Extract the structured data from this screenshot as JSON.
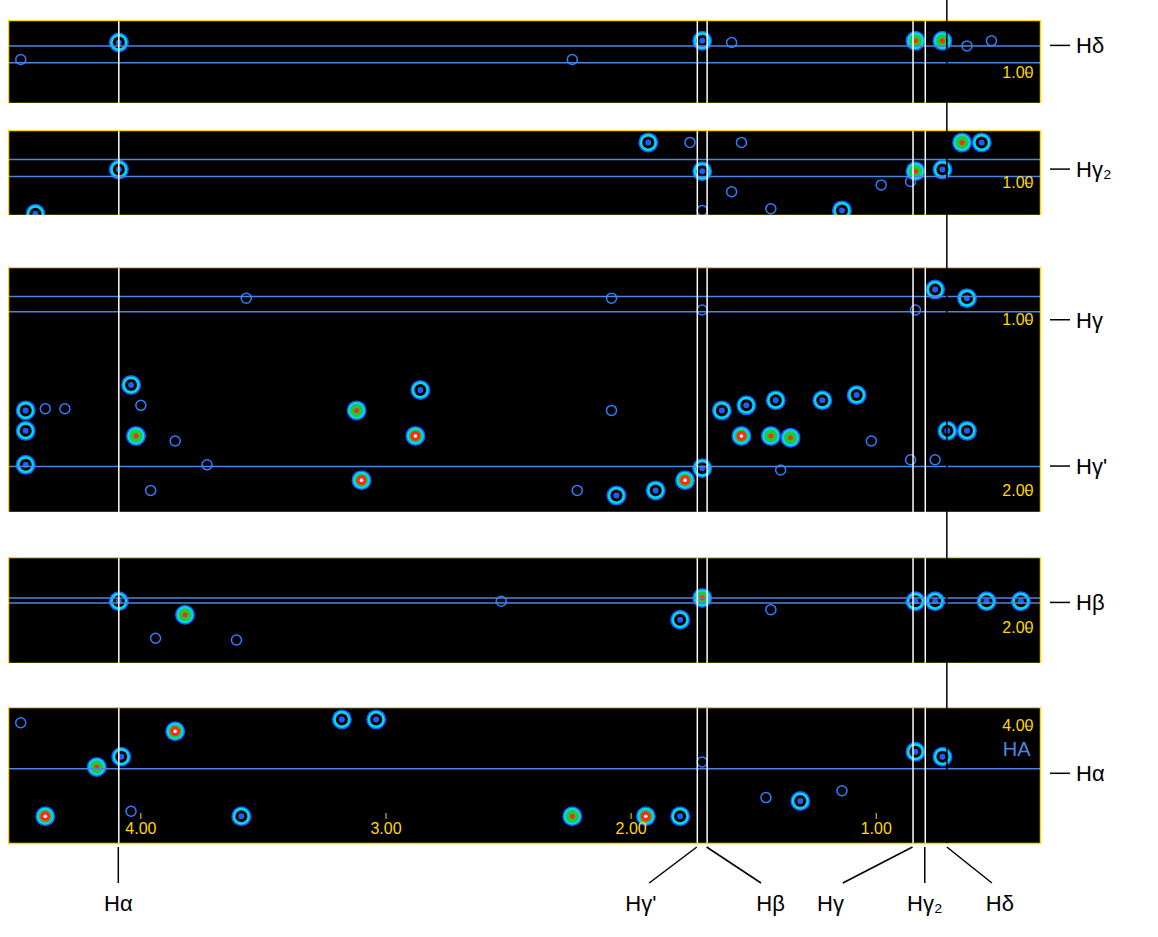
{
  "chart_data": {
    "type": "nmr_strips",
    "xlim": [
      4.54,
      0.33
    ],
    "columns": [
      {
        "label": "Hα",
        "x": 4.09,
        "color": "white"
      },
      {
        "label": "Hγ'",
        "x": 1.73,
        "color": "white"
      },
      {
        "label": "Hβ",
        "x": 1.69,
        "color": "white"
      },
      {
        "label": "Hγ",
        "x": 0.85,
        "color": "white"
      },
      {
        "label": "Hγ₂",
        "x": 0.8,
        "color": "white"
      },
      {
        "label": "Hδ",
        "x": 0.71,
        "color": "black"
      }
    ],
    "panels": [
      {
        "type": "contour",
        "ylim": [
          0.69,
          1.18
        ],
        "yticks": [
          {
            "value": 1,
            "label": "1.00"
          }
        ],
        "h_lines": [
          0.84,
          0.94
        ],
        "row_labels": [
          {
            "label": "Hδ",
            "y": 0.84
          }
        ],
        "peaks": [
          [
            4.09,
            0.82,
            2
          ],
          [
            1.71,
            0.81,
            2
          ],
          [
            0.84,
            0.81,
            3
          ],
          [
            0.73,
            0.81,
            3
          ],
          [
            1.59,
            0.82,
            1
          ],
          [
            4.49,
            0.92,
            1
          ],
          [
            2.24,
            0.92,
            1
          ],
          [
            0.63,
            0.84,
            1
          ],
          [
            0.53,
            0.81,
            1
          ]
        ]
      },
      {
        "type": "contour",
        "ylim": [
          0.69,
          1.19
        ],
        "yticks": [
          {
            "value": 1,
            "label": "1.00"
          }
        ],
        "h_lines": [
          0.86,
          0.96
        ],
        "row_labels": [
          {
            "label": "Hγ₂",
            "y": 0.92
          }
        ],
        "peaks": [
          [
            4.09,
            0.92,
            2
          ],
          [
            1.71,
            0.93,
            2
          ],
          [
            1.93,
            0.76,
            2
          ],
          [
            1.76,
            0.76,
            1
          ],
          [
            1.55,
            0.76,
            1
          ],
          [
            0.84,
            0.93,
            3
          ],
          [
            0.73,
            0.92,
            2
          ],
          [
            0.65,
            0.76,
            3
          ],
          [
            0.57,
            0.76,
            2
          ],
          [
            4.43,
            1.18,
            2
          ],
          [
            1.14,
            1.16,
            2
          ],
          [
            1.43,
            1.15,
            1
          ],
          [
            1.71,
            1.16,
            1
          ],
          [
            0.98,
            1.01,
            1
          ],
          [
            0.86,
            0.99,
            1
          ],
          [
            1.59,
            1.05,
            1
          ]
        ]
      },
      {
        "type": "contour",
        "ylim": [
          0.69,
          2.13
        ],
        "yticks": [
          {
            "value": 1,
            "label": "1.00"
          },
          {
            "value": 2,
            "label": "2.00"
          }
        ],
        "h_lines": [
          0.86,
          0.95,
          1.86
        ],
        "row_labels": [
          {
            "label": "Hγ",
            "y": 1.0
          },
          {
            "label": "Hγ'",
            "y": 1.86
          }
        ],
        "peaks": [
          [
            3.57,
            0.87,
            1
          ],
          [
            2.08,
            0.87,
            1
          ],
          [
            1.71,
            0.94,
            1
          ],
          [
            0.84,
            0.94,
            1
          ],
          [
            0.76,
            0.82,
            2
          ],
          [
            0.63,
            0.87,
            2
          ],
          [
            4.47,
            1.53,
            2
          ],
          [
            4.47,
            1.65,
            2
          ],
          [
            4.47,
            1.85,
            2
          ],
          [
            4.39,
            1.52,
            1
          ],
          [
            4.31,
            1.52,
            1
          ],
          [
            4.04,
            1.38,
            2
          ],
          [
            4.02,
            1.68,
            3
          ],
          [
            4.0,
            1.5,
            1
          ],
          [
            3.73,
            1.85,
            1
          ],
          [
            3.86,
            1.71,
            1
          ],
          [
            3.96,
            2.0,
            1
          ],
          [
            3.12,
            1.53,
            3
          ],
          [
            3.1,
            1.94,
            4
          ],
          [
            2.88,
            1.68,
            4
          ],
          [
            2.86,
            1.41,
            2
          ],
          [
            2.08,
            1.53,
            1
          ],
          [
            2.22,
            2.0,
            1
          ],
          [
            2.06,
            2.03,
            2
          ],
          [
            1.9,
            2.0,
            2
          ],
          [
            1.78,
            1.94,
            4
          ],
          [
            1.71,
            1.87,
            2
          ],
          [
            1.63,
            1.53,
            2
          ],
          [
            1.55,
            1.68,
            4
          ],
          [
            1.53,
            1.5,
            2
          ],
          [
            1.43,
            1.68,
            3
          ],
          [
            1.35,
            1.69,
            3
          ],
          [
            1.41,
            1.47,
            2
          ],
          [
            1.39,
            1.88,
            1
          ],
          [
            1.22,
            1.47,
            2
          ],
          [
            1.08,
            1.44,
            2
          ],
          [
            1.02,
            1.71,
            1
          ],
          [
            0.71,
            1.65,
            2
          ],
          [
            0.63,
            1.65,
            2
          ],
          [
            0.86,
            1.82,
            1
          ],
          [
            0.76,
            1.82,
            1
          ]
        ]
      },
      {
        "type": "contour",
        "ylim": [
          1.58,
          2.21
        ],
        "yticks": [
          {
            "value": 2,
            "label": "2.00"
          }
        ],
        "h_lines": [
          1.82,
          1.85
        ],
        "row_labels": [
          {
            "label": "Hβ",
            "y": 1.85
          }
        ],
        "peaks": [
          [
            4.09,
            1.84,
            2
          ],
          [
            3.82,
            1.92,
            3
          ],
          [
            3.94,
            2.06,
            1
          ],
          [
            1.71,
            1.82,
            3
          ],
          [
            1.8,
            1.95,
            2
          ],
          [
            1.43,
            1.89,
            1
          ],
          [
            0.84,
            1.84,
            2
          ],
          [
            0.76,
            1.84,
            2
          ],
          [
            0.55,
            1.84,
            2
          ],
          [
            0.41,
            1.84,
            2
          ],
          [
            3.61,
            2.07,
            1
          ],
          [
            2.53,
            1.84,
            1
          ]
        ]
      },
      {
        "type": "contour",
        "ylim": [
          3.89,
          4.69
        ],
        "yticks": [
          {
            "value": 4,
            "label": "4.00"
          }
        ],
        "xticks": [
          {
            "value": 4,
            "label": "4.00"
          },
          {
            "value": 3,
            "label": "3.00"
          },
          {
            "value": 2,
            "label": "2.00"
          },
          {
            "value": 1,
            "label": "1.00"
          }
        ],
        "h_lines": [
          4.25
        ],
        "annotation": "HA",
        "row_labels": [
          {
            "label": "Hα",
            "y": 4.28
          }
        ],
        "peaks": [
          [
            4.39,
            4.53,
            4
          ],
          [
            3.86,
            4.03,
            4
          ],
          [
            4.18,
            4.24,
            3
          ],
          [
            4.08,
            4.18,
            2
          ],
          [
            3.59,
            4.53,
            2
          ],
          [
            3.18,
            3.96,
            2
          ],
          [
            3.04,
            3.96,
            2
          ],
          [
            2.24,
            4.53,
            3
          ],
          [
            1.94,
            4.53,
            4
          ],
          [
            1.8,
            4.53,
            2
          ],
          [
            1.71,
            4.21,
            1
          ],
          [
            1.45,
            4.42,
            1
          ],
          [
            1.31,
            4.44,
            2
          ],
          [
            1.14,
            4.38,
            1
          ],
          [
            0.84,
            4.15,
            2
          ],
          [
            0.73,
            4.18,
            2
          ],
          [
            4.49,
            3.98,
            1
          ],
          [
            4.04,
            4.5,
            1
          ]
        ]
      }
    ]
  }
}
